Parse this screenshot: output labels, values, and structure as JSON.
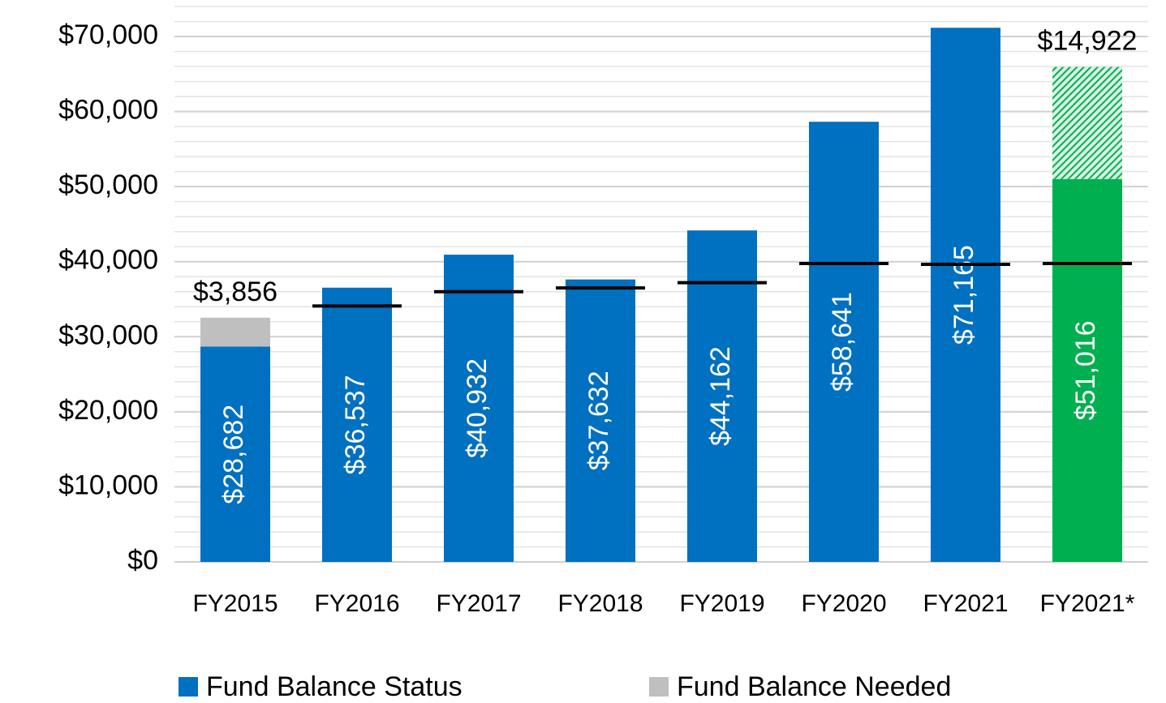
{
  "chart_data": {
    "type": "bar",
    "stacked": true,
    "categories": [
      "FY2015",
      "FY2016",
      "FY2017",
      "FY2018",
      "FY2019",
      "FY2020",
      "FY2021",
      "FY2021*"
    ],
    "series": [
      {
        "name": "Fund Balance Status",
        "color": "#0070c0",
        "colors": [
          "#0070c0",
          "#0070c0",
          "#0070c0",
          "#0070c0",
          "#0070c0",
          "#0070c0",
          "#0070c0",
          "#00b050"
        ],
        "values": [
          28682,
          36537,
          40932,
          37632,
          44162,
          58641,
          71165,
          51016
        ],
        "value_labels": [
          "$28,682",
          "$36,537",
          "$40,932",
          "$37,632",
          "$44,162",
          "$58,641",
          "$71,165",
          "$51,016"
        ]
      },
      {
        "name": "Fund Balance Needed",
        "color": "#bfbfbf",
        "colors": [
          "#bfbfbf",
          null,
          null,
          null,
          null,
          null,
          null,
          "#00b050"
        ],
        "hatched": [
          false,
          false,
          false,
          false,
          false,
          false,
          false,
          true
        ],
        "values": [
          3856,
          null,
          null,
          null,
          null,
          null,
          null,
          14922
        ],
        "value_labels": [
          "$3,856",
          null,
          null,
          null,
          null,
          null,
          null,
          "$14,922"
        ]
      }
    ],
    "target_line": {
      "color": "#000000",
      "values": [
        null,
        34100,
        36000,
        36500,
        37200,
        39750,
        39650,
        39750
      ]
    },
    "ylim": [
      0,
      74000
    ],
    "yticks": [
      {
        "value": 0,
        "label": "$0"
      },
      {
        "value": 10000,
        "label": "$10,000"
      },
      {
        "value": 20000,
        "label": "$20,000"
      },
      {
        "value": 30000,
        "label": "$30,000"
      },
      {
        "value": 40000,
        "label": "$40,000"
      },
      {
        "value": 50000,
        "label": "$50,000"
      },
      {
        "value": 60000,
        "label": "$60,000"
      },
      {
        "value": 70000,
        "label": "$70,000"
      }
    ],
    "yminor": 2000,
    "grid": true,
    "legend": "bottom"
  }
}
